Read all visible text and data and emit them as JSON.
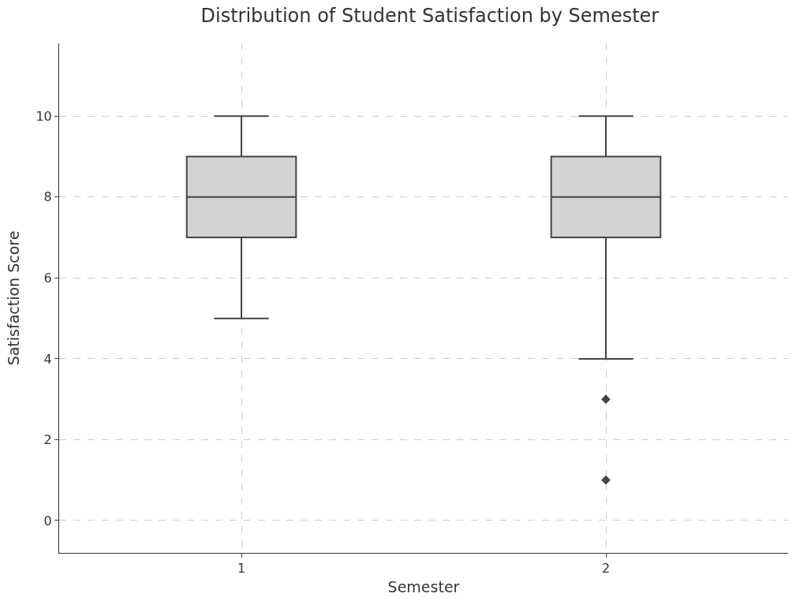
{
  "chart_data": {
    "type": "box",
    "title": "Distribution of Student Satisfaction by Semester",
    "xlabel": "Semester",
    "ylabel": "Satisfaction Score",
    "categories": [
      "1",
      "2"
    ],
    "series": [
      {
        "color": "#d3d3d3",
        "boxes": [
          {
            "low": 5,
            "q1": 7,
            "median": 8,
            "q3": 9,
            "high": 10
          },
          {
            "low": 4,
            "q1": 7,
            "median": 8,
            "q3": 9,
            "high": 10,
            "outliers": [
              3,
              1
            ]
          }
        ]
      }
    ],
    "ylim": [
      -0.8,
      11.8
    ],
    "yticks": [
      0,
      2,
      4,
      6,
      8,
      10
    ],
    "grid": true,
    "marker": "diamond"
  }
}
